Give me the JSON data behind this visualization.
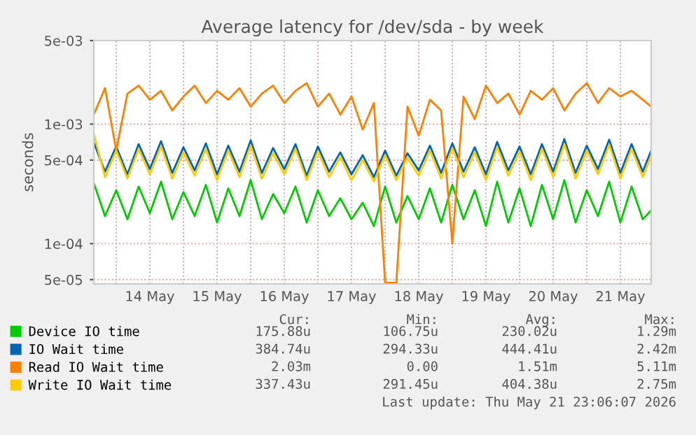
{
  "chart_data": {
    "type": "line",
    "title": "Average latency for /dev/sda - by week",
    "ylabel": "seconds",
    "log": "y",
    "x": [
      "2026-05-13T16:00",
      "2026-05-13T20:00",
      "2026-05-14T00:00",
      "2026-05-14T04:00",
      "2026-05-14T08:00",
      "2026-05-14T12:00",
      "2026-05-14T16:00",
      "2026-05-14T20:00",
      "2026-05-15T00:00",
      "2026-05-15T04:00",
      "2026-05-15T08:00",
      "2026-05-15T12:00",
      "2026-05-15T16:00",
      "2026-05-15T20:00",
      "2026-05-16T00:00",
      "2026-05-16T04:00",
      "2026-05-16T08:00",
      "2026-05-16T12:00",
      "2026-05-16T16:00",
      "2026-05-16T20:00",
      "2026-05-17T00:00",
      "2026-05-17T04:00",
      "2026-05-17T08:00",
      "2026-05-17T12:00",
      "2026-05-17T16:00",
      "2026-05-17T20:00",
      "2026-05-18T00:00",
      "2026-05-18T04:00",
      "2026-05-18T08:00",
      "2026-05-18T12:00",
      "2026-05-18T16:00",
      "2026-05-18T20:00",
      "2026-05-19T00:00",
      "2026-05-19T04:00",
      "2026-05-19T08:00",
      "2026-05-19T12:00",
      "2026-05-19T16:00",
      "2026-05-19T20:00",
      "2026-05-20T00:00",
      "2026-05-20T04:00",
      "2026-05-20T08:00",
      "2026-05-20T12:00",
      "2026-05-20T16:00",
      "2026-05-20T20:00",
      "2026-05-21T00:00",
      "2026-05-21T04:00",
      "2026-05-21T08:00",
      "2026-05-21T12:00",
      "2026-05-21T16:00",
      "2026-05-21T20:00",
      "2026-05-21T23:00"
    ],
    "series": [
      {
        "name": "Device IO time",
        "color": "#00cc00",
        "values": [
          0.00032,
          0.00017,
          0.00028,
          0.00016,
          0.0003,
          0.00018,
          0.00033,
          0.00016,
          0.00027,
          0.00017,
          0.00031,
          0.00015,
          0.00029,
          0.00017,
          0.00034,
          0.00016,
          0.00026,
          0.00018,
          0.0003,
          0.00015,
          0.00028,
          0.00017,
          0.00024,
          0.00016,
          0.00022,
          0.00014,
          0.0003,
          0.00015,
          0.00025,
          0.00016,
          0.00029,
          0.00015,
          0.00031,
          0.00016,
          0.00028,
          0.00014,
          0.00033,
          0.00015,
          0.00029,
          0.00014,
          0.00031,
          0.00016,
          0.00034,
          0.00015,
          0.00028,
          0.00017,
          0.00033,
          0.00015,
          0.0003,
          0.00016,
          0.00019
        ]
      },
      {
        "name": "IO Wait time",
        "color": "#0066b3",
        "values": [
          0.0007,
          0.0004,
          0.00065,
          0.00038,
          0.00068,
          0.00042,
          0.00072,
          0.00039,
          0.00064,
          0.00041,
          0.00069,
          0.00038,
          0.00066,
          0.0004,
          0.00073,
          0.00039,
          0.00063,
          0.00042,
          0.00068,
          0.00037,
          0.00065,
          0.0004,
          0.00058,
          0.00038,
          0.00055,
          0.00036,
          0.0006,
          0.00037,
          0.00057,
          0.00041,
          0.00066,
          0.00039,
          0.00069,
          0.0004,
          0.00064,
          0.00038,
          0.00071,
          0.00041,
          0.00065,
          0.00038,
          0.00068,
          0.0004,
          0.00075,
          0.00039,
          0.00066,
          0.00042,
          0.00074,
          0.00039,
          0.00068,
          0.0004,
          0.0006
        ]
      },
      {
        "name": "Read IO Wait time",
        "color": "#ff8000",
        "values": [
          0.0012,
          0.002,
          0.0006,
          0.0018,
          0.0021,
          0.0016,
          0.0019,
          0.0013,
          0.0017,
          0.0021,
          0.0015,
          0.0019,
          0.0016,
          0.002,
          0.0014,
          0.0018,
          0.0021,
          0.0015,
          0.0019,
          0.0022,
          0.0014,
          0.0018,
          0.0012,
          0.0017,
          0.0009,
          0.0015,
          4.7e-05,
          4.7e-05,
          0.0014,
          0.0008,
          0.0016,
          0.0013,
          0.0001,
          0.0017,
          0.0011,
          0.0021,
          0.0015,
          0.0018,
          0.0012,
          0.0019,
          0.0016,
          0.002,
          0.0013,
          0.0018,
          0.0022,
          0.0015,
          0.002,
          0.0017,
          0.0019,
          0.0016,
          0.0014
        ]
      },
      {
        "name": "Write IO Wait time",
        "color": "#ffcc00",
        "values": [
          0.00083,
          0.00036,
          0.0006,
          0.00035,
          0.00062,
          0.00038,
          0.00065,
          0.00035,
          0.00058,
          0.00037,
          0.00062,
          0.00034,
          0.0006,
          0.00036,
          0.00066,
          0.00035,
          0.00057,
          0.00038,
          0.00062,
          0.00034,
          0.00059,
          0.00036,
          0.00053,
          0.00034,
          0.0005,
          0.00033,
          0.00055,
          0.00034,
          0.00052,
          0.00037,
          0.0006,
          0.00035,
          0.00063,
          0.00036,
          0.00058,
          0.00034,
          0.00064,
          0.00037,
          0.00059,
          0.00034,
          0.00062,
          0.00036,
          0.00068,
          0.00035,
          0.0006,
          0.00038,
          0.00067,
          0.00035,
          0.00062,
          0.00036,
          0.00054
        ]
      }
    ],
    "xlim": [
      "2026-05-13T16:00",
      "2026-05-21T23:00"
    ],
    "xticks": [
      {
        "value": "2026-05-14T00:00",
        "label": null
      },
      {
        "value": "2026-05-14T12:00",
        "label": "14 May"
      },
      {
        "value": "2026-05-15T00:00",
        "label": null
      },
      {
        "value": "2026-05-15T12:00",
        "label": "15 May"
      },
      {
        "value": "2026-05-16T00:00",
        "label": null
      },
      {
        "value": "2026-05-16T12:00",
        "label": "16 May"
      },
      {
        "value": "2026-05-17T00:00",
        "label": null
      },
      {
        "value": "2026-05-17T12:00",
        "label": "17 May"
      },
      {
        "value": "2026-05-18T00:00",
        "label": null
      },
      {
        "value": "2026-05-18T12:00",
        "label": "18 May"
      },
      {
        "value": "2026-05-19T00:00",
        "label": null
      },
      {
        "value": "2026-05-19T12:00",
        "label": "19 May"
      },
      {
        "value": "2026-05-20T00:00",
        "label": null
      },
      {
        "value": "2026-05-20T12:00",
        "label": "20 May"
      },
      {
        "value": "2026-05-21T00:00",
        "label": null
      },
      {
        "value": "2026-05-21T12:00",
        "label": "21 May"
      }
    ],
    "ylim": [
      4.6e-05,
      0.005
    ],
    "yticks": [
      {
        "value": 5e-05,
        "label": "5e-05"
      },
      {
        "value": 0.0001,
        "label": "1e-04"
      },
      {
        "value": 0.0005,
        "label": "5e-04"
      },
      {
        "value": 0.001,
        "label": "1e-03"
      },
      {
        "value": 0.005,
        "label": "5e-03"
      }
    ],
    "grid": true,
    "legend": "bottom",
    "marker": "none",
    "line_style": "solid",
    "annotations": [
      "Cur:",
      "Min:",
      "Avg:",
      "Max:",
      "175.88u",
      "106.75u",
      "230.02u",
      "1.29m",
      "384.74u",
      "294.33u",
      "444.41u",
      "2.42m",
      "2.03m",
      "0.00",
      "1.51m",
      "5.11m",
      "337.43u",
      "291.45u",
      "404.38u",
      "2.75m",
      "Last update: Thu May 21 23:06:07 2026"
    ]
  }
}
